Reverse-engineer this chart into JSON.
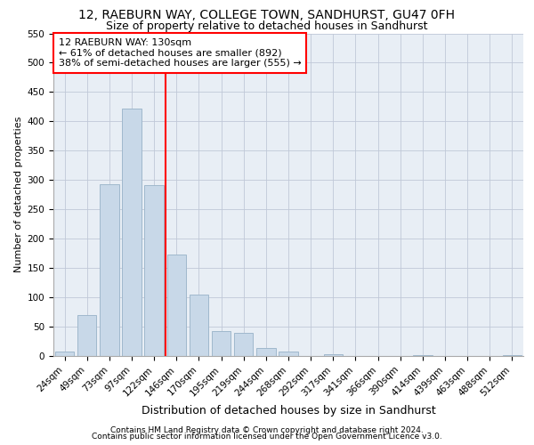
{
  "title1": "12, RAEBURN WAY, COLLEGE TOWN, SANDHURST, GU47 0FH",
  "title2": "Size of property relative to detached houses in Sandhurst",
  "xlabel": "Distribution of detached houses by size in Sandhurst",
  "ylabel": "Number of detached properties",
  "footnote1": "Contains HM Land Registry data © Crown copyright and database right 2024.",
  "footnote2": "Contains public sector information licensed under the Open Government Licence v3.0.",
  "bin_labels": [
    "24sqm",
    "49sqm",
    "73sqm",
    "97sqm",
    "122sqm",
    "146sqm",
    "170sqm",
    "195sqm",
    "219sqm",
    "244sqm",
    "268sqm",
    "292sqm",
    "317sqm",
    "341sqm",
    "366sqm",
    "390sqm",
    "414sqm",
    "439sqm",
    "463sqm",
    "488sqm",
    "512sqm"
  ],
  "bar_values": [
    7,
    70,
    293,
    422,
    291,
    173,
    105,
    43,
    40,
    14,
    7,
    0,
    3,
    0,
    0,
    0,
    2,
    0,
    0,
    0,
    2
  ],
  "bar_color": "#c8d8e8",
  "bar_edge_color": "#a0b8cc",
  "grid_color": "#c0c8d8",
  "background_color": "#e8eef5",
  "vline_x": 4.5,
  "vline_color": "red",
  "ylim": [
    0,
    550
  ],
  "yticks": [
    0,
    50,
    100,
    150,
    200,
    250,
    300,
    350,
    400,
    450,
    500,
    550
  ],
  "annotation_text": "12 RAEBURN WAY: 130sqm\n← 61% of detached houses are smaller (892)\n38% of semi-detached houses are larger (555) →",
  "annotation_box_color": "white",
  "annotation_box_edge_color": "red",
  "title1_fontsize": 10,
  "title2_fontsize": 9,
  "xlabel_fontsize": 9,
  "ylabel_fontsize": 8,
  "tick_fontsize": 7.5,
  "footnote_fontsize": 6.5,
  "annotation_fontsize": 8
}
